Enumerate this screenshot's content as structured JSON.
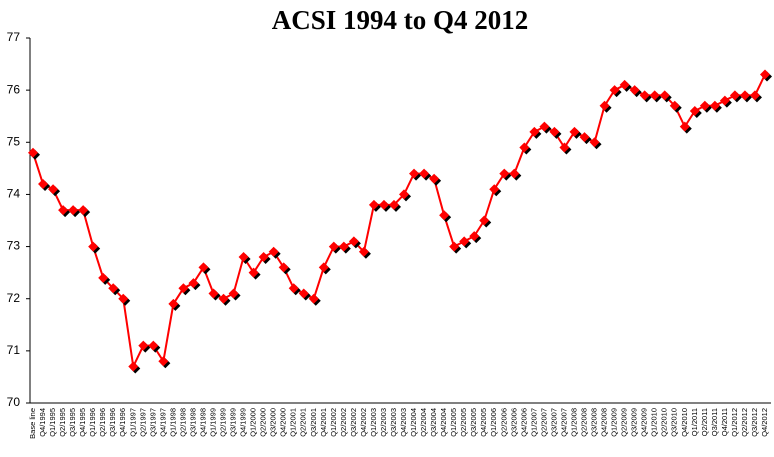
{
  "chart_data": {
    "type": "line",
    "title": "ACSI 1994 to Q4 2012",
    "categories": [
      "Base line",
      "Q4/1994",
      "Q1/1995",
      "Q2/1995",
      "Q3/1995",
      "Q4/1995",
      "Q1/1996",
      "Q2/1996",
      "Q3/1996",
      "Q4/1996",
      "Q1/1997",
      "Q2/1997",
      "Q3/1997",
      "Q4/1997",
      "Q1/1998",
      "Q2/1998",
      "Q3/1998",
      "Q4/1998",
      "Q1/1999",
      "Q2/1999",
      "Q3/1999",
      "Q4/1999",
      "Q1/2000",
      "Q2/2000",
      "Q3/2000",
      "Q4/2000",
      "Q1/2001",
      "Q2/2001",
      "Q3/2001",
      "Q4/2001",
      "Q1/2002",
      "Q2/2002",
      "Q3/2002",
      "Q4/2002",
      "Q1/2003",
      "Q2/2003",
      "Q3/2003",
      "Q4/2003",
      "Q1/2004",
      "Q2/2004",
      "Q3/2004",
      "Q4/2004",
      "Q1/2005",
      "Q2/2005",
      "Q3/2005",
      "Q4/2005",
      "Q1/2006",
      "Q2/2006",
      "Q3/2006",
      "Q4/2006",
      "Q1/2007",
      "Q2/2007",
      "Q3/2007",
      "Q4/2007",
      "Q1/2008",
      "Q2/2008",
      "Q3/2008",
      "Q4/2008",
      "Q1/2009",
      "Q2/2009",
      "Q3/2009",
      "Q4/2009",
      "Q1/2010",
      "Q2/2010",
      "Q3/2010",
      "Q4/2010",
      "Q1/2011",
      "Q2/2011",
      "Q3/2011",
      "Q4/2011",
      "Q1/2012",
      "Q2/2012",
      "Q3/2012",
      "Q4/2012"
    ],
    "values": [
      74.8,
      74.2,
      74.1,
      73.7,
      73.7,
      73.7,
      73.0,
      72.4,
      72.2,
      72.0,
      70.7,
      71.1,
      71.1,
      70.8,
      71.9,
      72.2,
      72.3,
      72.6,
      72.1,
      72.0,
      72.1,
      72.8,
      72.5,
      72.8,
      72.9,
      72.6,
      72.2,
      72.1,
      72.0,
      72.6,
      73.0,
      73.0,
      73.1,
      72.9,
      73.8,
      73.8,
      73.8,
      74.0,
      74.4,
      74.4,
      74.3,
      73.6,
      73.0,
      73.1,
      73.2,
      73.5,
      74.1,
      74.4,
      74.4,
      74.9,
      75.2,
      75.3,
      75.2,
      74.9,
      75.2,
      75.1,
      75.0,
      75.7,
      76.0,
      76.1,
      76.0,
      75.9,
      75.9,
      75.9,
      75.7,
      75.3,
      75.6,
      75.7,
      75.7,
      75.8,
      75.9,
      75.9,
      75.9,
      76.3
    ],
    "color": "#ff0000",
    "ylim": [
      70,
      77
    ],
    "yticks": [
      70,
      71,
      72,
      73,
      74,
      75,
      76,
      77
    ],
    "grid": false
  }
}
